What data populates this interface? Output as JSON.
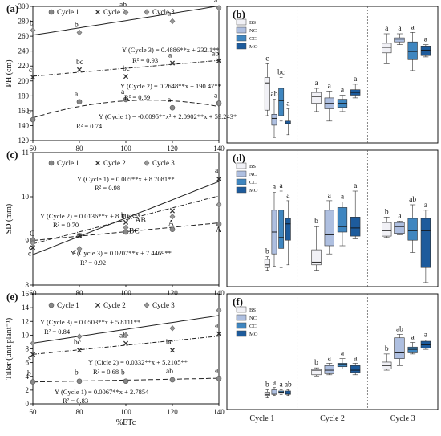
{
  "chart_data": [
    {
      "panel": "(a)",
      "type": "scatter",
      "ylabel": "PH (cm)",
      "xlabel": "",
      "xlim": [
        60,
        140
      ],
      "ylim": [
        120,
        300
      ],
      "xticks": [
        60,
        80,
        100,
        120,
        140
      ],
      "yticks": [
        120,
        140,
        160,
        180,
        200,
        220,
        240,
        260,
        280,
        300
      ],
      "legend_position": "top",
      "series": [
        {
          "name": "Cycle 1",
          "marker": "circle",
          "x": [
            60,
            80,
            100,
            120,
            140
          ],
          "y": [
            148,
            172,
            175,
            164,
            170
          ],
          "letters": [
            "b",
            "a",
            "a",
            "a",
            "a"
          ],
          "fit": "quadratic",
          "coef": [
            -0.0095,
            2.0902,
            59.243
          ],
          "equation": "Y (Cycle 1) = -0.0095**x² + 2.0902**x + 59.243*",
          "r2": "R² = 0.74"
        },
        {
          "name": "Cycle 2",
          "marker": "x",
          "x": [
            60,
            80,
            100,
            120,
            140
          ],
          "y": [
            205,
            215,
            206,
            224,
            227
          ],
          "letters": [
            "c",
            "bc",
            "bc",
            "a",
            "ab"
          ],
          "fit": "linear",
          "coef": [
            0.2648,
            190.47
          ],
          "equation": "Y (Cycle 2) = 0.2648**x + 190.47**",
          "r2": "R² = 0.69"
        },
        {
          "name": "Cycle 3",
          "marker": "diamond",
          "x": [
            60,
            80,
            100,
            120,
            140
          ],
          "y": [
            268,
            265,
            292,
            280,
            298
          ],
          "letters": [
            "b",
            "b",
            "ab",
            "a",
            "a"
          ],
          "fit": "linear",
          "coef": [
            0.4886,
            232.1
          ],
          "equation": "Y (Cycle 3) = 0.4886**x + 232.1**",
          "r2": "R² = 0.93"
        }
      ]
    },
    {
      "panel": "(b)",
      "type": "box",
      "groups": [
        "BS",
        "NC",
        "CC",
        "MO"
      ],
      "colors": {
        "BS": "#f1f1f6",
        "NC": "#aebfe0",
        "CC": "#3f86c0",
        "MO": "#1d5b9c"
      },
      "legend_position": "top-left",
      "cycles": [
        {
          "name": "Cycle 1",
          "letters": [
            "c",
            "ab",
            "bc",
            "a"
          ],
          "boxes": [
            [
              0.42,
              0.52,
              0.56,
              0.76,
              0.8
            ],
            [
              0.68,
              0.79,
              0.82,
              0.87,
              0.96
            ],
            [
              0.52,
              0.6,
              0.69,
              0.8,
              0.84
            ],
            [
              0.75,
              0.84,
              0.86,
              0.86,
              0.94
            ]
          ]
        },
        {
          "name": "Cycle 2",
          "letters": [
            "a",
            "a",
            "a",
            "a"
          ],
          "boxes": [
            [
              0.6,
              0.63,
              0.66,
              0.71,
              0.77
            ],
            [
              0.62,
              0.67,
              0.71,
              0.75,
              0.84
            ],
            [
              0.65,
              0.68,
              0.71,
              0.74,
              0.77
            ],
            [
              0.57,
              0.61,
              0.63,
              0.65,
              0.67
            ]
          ]
        },
        {
          "name": "Cycle 3",
          "letters": [
            "a",
            "a",
            "a",
            "a"
          ],
          "boxes": [
            [
              0.2,
              0.27,
              0.3,
              0.34,
              0.42
            ],
            [
              0.2,
              0.23,
              0.24,
              0.26,
              0.28
            ],
            [
              0.19,
              0.26,
              0.33,
              0.39,
              0.47
            ],
            [
              0.28,
              0.29,
              0.32,
              0.36,
              0.37
            ]
          ]
        }
      ]
    },
    {
      "panel": "(c)",
      "type": "scatter",
      "ylabel": "SD (mm)",
      "xlabel": "",
      "xlim": [
        60,
        140
      ],
      "ylim": [
        8,
        11
      ],
      "xticks": [
        60,
        80,
        100,
        120,
        140
      ],
      "yticks": [
        8,
        9,
        10,
        11
      ],
      "legend_position": "top",
      "series": [
        {
          "name": "Cycle 1",
          "marker": "circle",
          "x": [
            60,
            80,
            100,
            120,
            140
          ],
          "y": [
            9.02,
            9.12,
            9.2,
            9.26,
            9.38
          ],
          "letters": [
            "C",
            "",
            "",
            "A",
            "A"
          ],
          "fit": "linear",
          "coef": [
            0.005,
            8.7081
          ],
          "equation": "Y (Cycle 1) = 0.005**x + 8.7081**",
          "r2": "R² = 0.98"
        },
        {
          "name": "Cycle 2",
          "marker": "x",
          "x": [
            60,
            80,
            100,
            120,
            140
          ],
          "y": [
            8.85,
            9.12,
            9.42,
            9.68,
            10.4
          ],
          "letters": [
            "c",
            "",
            "b",
            "",
            "a"
          ],
          "fit": "linear",
          "coef": [
            0.0136,
            8.1163
          ],
          "equation": "Y (Cycle 2) = 0.0136**x + 8.1163**",
          "r2": "R² = 0.70"
        },
        {
          "name": "Cycle 3",
          "marker": "diamond",
          "x": [
            60,
            80,
            100,
            120,
            140
          ],
          "y": [
            8.95,
            8.82,
            9.3,
            9.55,
            9.82
          ],
          "letters": [
            "c",
            "c",
            "BC",
            "",
            ""
          ],
          "fit": "linear",
          "coef": [
            0.0207,
            7.4469
          ],
          "equation": "Y (Cycle 3) = 0.0207**x + 7.4469**",
          "r2": "R² = 0.92"
        }
      ],
      "extra_labels": [
        {
          "text": "AB",
          "x": 104,
          "y": 9.42
        }
      ]
    },
    {
      "panel": "(d)",
      "type": "box",
      "groups": [
        "BS",
        "NC",
        "CC",
        "MO"
      ],
      "legend_position": "top-left",
      "cycles": [
        {
          "name": "Cycle 1",
          "letters": [
            "b",
            "a",
            "a",
            "a"
          ],
          "boxes": [
            [
              0.88,
              0.86,
              0.84,
              0.8,
              0.78
            ],
            [
              0.85,
              0.76,
              0.6,
              0.44,
              0.31
            ],
            [
              0.86,
              0.72,
              0.64,
              0.44,
              0.3
            ],
            [
              0.84,
              0.66,
              0.54,
              0.5,
              0.37
            ]
          ]
        },
        {
          "name": "Cycle 2",
          "letters": [
            "b",
            "a",
            "a",
            "a"
          ],
          "boxes": [
            [
              0.88,
              0.84,
              0.82,
              0.73,
              0.56
            ],
            [
              0.76,
              0.7,
              0.62,
              0.44,
              0.37
            ],
            [
              0.7,
              0.6,
              0.56,
              0.42,
              0.38
            ],
            [
              0.65,
              0.63,
              0.57,
              0.49,
              0.3
            ]
          ]
        },
        {
          "name": "Cycle 3",
          "letters": [
            "b",
            "a",
            "ab",
            "a"
          ],
          "boxes": [
            [
              0.64,
              0.63,
              0.59,
              0.53,
              0.49
            ],
            [
              0.62,
              0.61,
              0.56,
              0.53,
              0.52
            ],
            [
              0.75,
              0.66,
              0.59,
              0.5,
              0.4
            ],
            [
              0.97,
              0.86,
              0.59,
              0.5,
              0.44
            ]
          ]
        }
      ]
    },
    {
      "panel": "(e)",
      "type": "scatter",
      "ylabel": "Tiller (unit plant⁻¹)",
      "xlabel": "%ETc",
      "xlim": [
        60,
        140
      ],
      "ylim": [
        0,
        16
      ],
      "xticks": [
        60,
        80,
        100,
        120,
        140
      ],
      "yticks": [
        0,
        2,
        4,
        6,
        8,
        10,
        12,
        14,
        16
      ],
      "legend_position": "top",
      "series": [
        {
          "name": "Cycle 1",
          "marker": "circle",
          "x": [
            60,
            80,
            100,
            120,
            140
          ],
          "y": [
            3.2,
            3.3,
            3.3,
            3.5,
            3.7
          ],
          "letters": [
            "b",
            "b",
            "b",
            "ab",
            "a"
          ],
          "fit": "linear",
          "coef": [
            0.0067,
            2.7854
          ],
          "equation": "Y (Cycle 1) = 0.0067**x + 2.7854",
          "r2": "R² = 0.83"
        },
        {
          "name": "Cycle 2",
          "marker": "x",
          "x": [
            60,
            80,
            100,
            120,
            140
          ],
          "y": [
            7.2,
            7.8,
            8.8,
            7.8,
            10.2
          ],
          "letters": [
            "c",
            "bc",
            "ab",
            "bc",
            "a"
          ],
          "fit": "linear",
          "coef": [
            0.0332,
            5.2105
          ],
          "equation": "Y (Cicle 2) = 0.0332**x + 5.2105**",
          "r2": "R² = 0.68"
        },
        {
          "name": "Cycle 3",
          "marker": "diamond",
          "x": [
            60,
            80,
            100,
            120,
            140
          ],
          "y": [
            8.8,
            9.8,
            10.0,
            11.0,
            13.6
          ],
          "letters": [
            "",
            "",
            "",
            "",
            ""
          ],
          "fit": "linear",
          "coef": [
            0.0503,
            5.8111
          ],
          "equation": "Y (Cycle 3) = 0.0503**x + 5.8111**",
          "r2": "R² = 0.84"
        }
      ]
    },
    {
      "panel": "(f)",
      "type": "box",
      "groups": [
        "BS",
        "NC",
        "CC",
        "MO"
      ],
      "legend_position": "top-left",
      "cycles": [
        {
          "name": "Cycle 1",
          "letters": [
            "b",
            "a",
            "a",
            "ab"
          ],
          "boxes": [
            [
              0.9,
              0.88,
              0.87,
              0.85,
              0.83
            ],
            [
              0.88,
              0.87,
              0.86,
              0.83,
              0.81
            ],
            [
              0.87,
              0.86,
              0.85,
              0.84,
              0.83
            ],
            [
              0.88,
              0.87,
              0.86,
              0.84,
              0.83
            ]
          ]
        },
        {
          "name": "Cycle 2",
          "letters": [
            "b",
            "a",
            "a",
            "a"
          ],
          "boxes": [
            [
              0.71,
              0.7,
              0.66,
              0.65,
              0.64
            ],
            [
              0.7,
              0.69,
              0.66,
              0.62,
              0.6
            ],
            [
              0.65,
              0.63,
              0.61,
              0.6,
              0.56
            ],
            [
              0.7,
              0.68,
              0.66,
              0.62,
              0.6
            ]
          ]
        },
        {
          "name": "Cycle 3",
          "letters": [
            "b",
            "ab",
            "a",
            "a"
          ],
          "boxes": [
            [
              0.66,
              0.65,
              0.62,
              0.59,
              0.52
            ],
            [
              0.62,
              0.56,
              0.51,
              0.38,
              0.35
            ],
            [
              0.52,
              0.51,
              0.48,
              0.46,
              0.42
            ],
            [
              0.48,
              0.47,
              0.44,
              0.41,
              0.4
            ]
          ]
        }
      ]
    }
  ],
  "shared_x_categories": [
    "Cycle 1",
    "Cycle 2",
    "Cycle 3"
  ]
}
